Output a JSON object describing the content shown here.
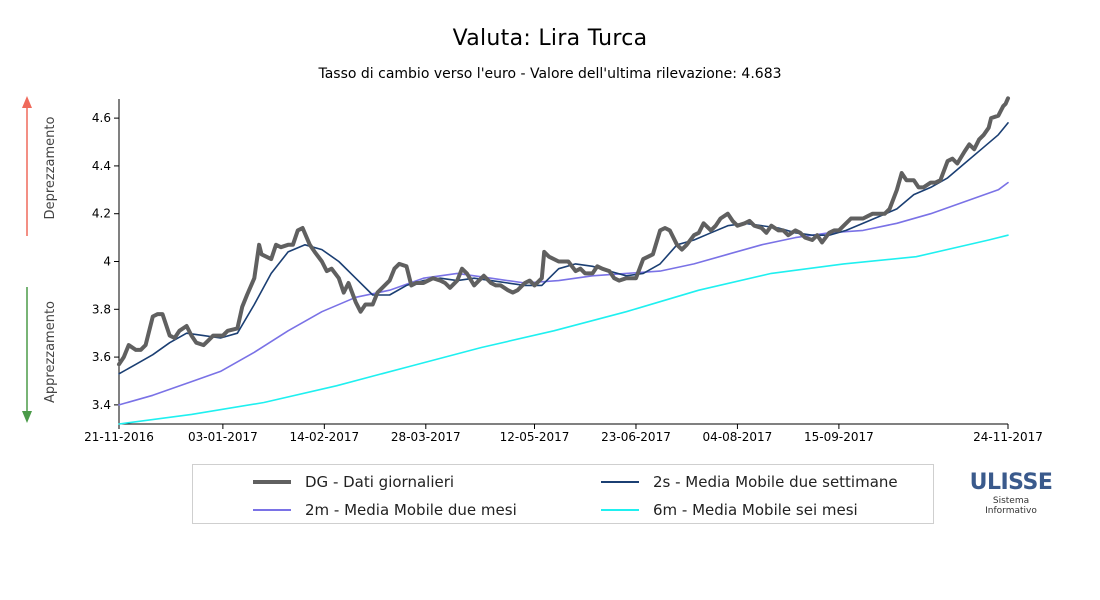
{
  "title": "Valuta: Lira Turca",
  "subtitle": "Tasso di cambio verso l'euro - Valore dell'ultima rilevazione: 4.683",
  "side_labels": {
    "up": "Deprezzamento",
    "down": "Apprezzamento",
    "up_color": "#ef6a5b",
    "down_color": "#4a9a48"
  },
  "logo": {
    "main": "ULISSE",
    "sub1": "Sistema",
    "sub2": "Informativo",
    "color": "#3a5a8c"
  },
  "chart_data": {
    "type": "line",
    "title": "Valuta: Lira Turca",
    "subtitle": "Tasso di cambio verso l'euro - Valore dell'ultima rilevazione: 4.683",
    "x_ticks": [
      "21-11-2016",
      "03-01-2017",
      "14-02-2017",
      "28-03-2017",
      "12-05-2017",
      "23-06-2017",
      "04-08-2017",
      "15-09-2017",
      "24-11-2017"
    ],
    "x_range": [
      "2016-11-21",
      "2017-11-24"
    ],
    "y_ticks": [
      3.4,
      3.6,
      3.8,
      4,
      4.2,
      4.4,
      4.6
    ],
    "y_tick_labels": [
      "3.4",
      "3.6",
      "3.8",
      "4",
      "4.2",
      "4.4",
      "4.6"
    ],
    "ylim": [
      3.32,
      4.68
    ],
    "grid": false,
    "legend_position": "bottom",
    "series": [
      {
        "name": "DG - Dati giornalieri",
        "color": "#606060",
        "points": [
          [
            "2016-11-21",
            3.57
          ],
          [
            "2016-11-23",
            3.6
          ],
          [
            "2016-11-25",
            3.65
          ],
          [
            "2016-11-28",
            3.63
          ],
          [
            "2016-11-30",
            3.63
          ],
          [
            "2016-12-02",
            3.65
          ],
          [
            "2016-12-05",
            3.77
          ],
          [
            "2016-12-07",
            3.78
          ],
          [
            "2016-12-09",
            3.78
          ],
          [
            "2016-12-12",
            3.69
          ],
          [
            "2016-12-14",
            3.68
          ],
          [
            "2016-12-16",
            3.71
          ],
          [
            "2016-12-19",
            3.73
          ],
          [
            "2016-12-21",
            3.69
          ],
          [
            "2016-12-23",
            3.66
          ],
          [
            "2016-12-26",
            3.65
          ],
          [
            "2016-12-28",
            3.67
          ],
          [
            "2016-12-30",
            3.69
          ],
          [
            "2017-01-03",
            3.69
          ],
          [
            "2017-01-05",
            3.71
          ],
          [
            "2017-01-09",
            3.72
          ],
          [
            "2017-01-11",
            3.81
          ],
          [
            "2017-01-13",
            3.86
          ],
          [
            "2017-01-16",
            3.93
          ],
          [
            "2017-01-18",
            4.07
          ],
          [
            "2017-01-19",
            4.03
          ],
          [
            "2017-01-23",
            4.01
          ],
          [
            "2017-01-25",
            4.07
          ],
          [
            "2017-01-27",
            4.06
          ],
          [
            "2017-01-30",
            4.07
          ],
          [
            "2017-02-01",
            4.07
          ],
          [
            "2017-02-03",
            4.13
          ],
          [
            "2017-02-05",
            4.14
          ],
          [
            "2017-02-08",
            4.07
          ],
          [
            "2017-02-10",
            4.04
          ],
          [
            "2017-02-13",
            4.0
          ],
          [
            "2017-02-15",
            3.96
          ],
          [
            "2017-02-17",
            3.97
          ],
          [
            "2017-02-20",
            3.93
          ],
          [
            "2017-02-22",
            3.87
          ],
          [
            "2017-02-24",
            3.91
          ],
          [
            "2017-02-27",
            3.83
          ],
          [
            "2017-03-01",
            3.79
          ],
          [
            "2017-03-03",
            3.82
          ],
          [
            "2017-03-06",
            3.82
          ],
          [
            "2017-03-08",
            3.87
          ],
          [
            "2017-03-10",
            3.89
          ],
          [
            "2017-03-13",
            3.92
          ],
          [
            "2017-03-15",
            3.97
          ],
          [
            "2017-03-17",
            3.99
          ],
          [
            "2017-03-20",
            3.98
          ],
          [
            "2017-03-22",
            3.9
          ],
          [
            "2017-03-24",
            3.91
          ],
          [
            "2017-03-27",
            3.91
          ],
          [
            "2017-03-29",
            3.92
          ],
          [
            "2017-03-31",
            3.93
          ],
          [
            "2017-04-03",
            3.92
          ],
          [
            "2017-04-05",
            3.91
          ],
          [
            "2017-04-07",
            3.89
          ],
          [
            "2017-04-10",
            3.92
          ],
          [
            "2017-04-12",
            3.97
          ],
          [
            "2017-04-14",
            3.95
          ],
          [
            "2017-04-17",
            3.9
          ],
          [
            "2017-04-19",
            3.92
          ],
          [
            "2017-04-21",
            3.94
          ],
          [
            "2017-04-24",
            3.91
          ],
          [
            "2017-04-26",
            3.9
          ],
          [
            "2017-04-28",
            3.9
          ],
          [
            "2017-05-01",
            3.88
          ],
          [
            "2017-05-03",
            3.87
          ],
          [
            "2017-05-05",
            3.88
          ],
          [
            "2017-05-08",
            3.91
          ],
          [
            "2017-05-10",
            3.92
          ],
          [
            "2017-05-12",
            3.9
          ],
          [
            "2017-05-15",
            3.93
          ],
          [
            "2017-05-16",
            4.04
          ],
          [
            "2017-05-18",
            4.02
          ],
          [
            "2017-05-22",
            4.0
          ],
          [
            "2017-05-24",
            4.0
          ],
          [
            "2017-05-26",
            4.0
          ],
          [
            "2017-05-29",
            3.96
          ],
          [
            "2017-05-31",
            3.97
          ],
          [
            "2017-06-02",
            3.95
          ],
          [
            "2017-06-05",
            3.95
          ],
          [
            "2017-06-07",
            3.98
          ],
          [
            "2017-06-09",
            3.97
          ],
          [
            "2017-06-12",
            3.96
          ],
          [
            "2017-06-14",
            3.93
          ],
          [
            "2017-06-16",
            3.92
          ],
          [
            "2017-06-19",
            3.93
          ],
          [
            "2017-06-21",
            3.93
          ],
          [
            "2017-06-23",
            3.93
          ],
          [
            "2017-06-26",
            4.01
          ],
          [
            "2017-06-28",
            4.02
          ],
          [
            "2017-06-30",
            4.03
          ],
          [
            "2017-07-03",
            4.13
          ],
          [
            "2017-07-05",
            4.14
          ],
          [
            "2017-07-07",
            4.13
          ],
          [
            "2017-07-10",
            4.07
          ],
          [
            "2017-07-12",
            4.05
          ],
          [
            "2017-07-14",
            4.07
          ],
          [
            "2017-07-17",
            4.11
          ],
          [
            "2017-07-19",
            4.12
          ],
          [
            "2017-07-21",
            4.16
          ],
          [
            "2017-07-24",
            4.13
          ],
          [
            "2017-07-26",
            4.15
          ],
          [
            "2017-07-28",
            4.18
          ],
          [
            "2017-07-31",
            4.2
          ],
          [
            "2017-08-02",
            4.17
          ],
          [
            "2017-08-04",
            4.15
          ],
          [
            "2017-08-07",
            4.16
          ],
          [
            "2017-08-09",
            4.17
          ],
          [
            "2017-08-11",
            4.15
          ],
          [
            "2017-08-14",
            4.14
          ],
          [
            "2017-08-16",
            4.12
          ],
          [
            "2017-08-18",
            4.15
          ],
          [
            "2017-08-21",
            4.13
          ],
          [
            "2017-08-23",
            4.13
          ],
          [
            "2017-08-25",
            4.11
          ],
          [
            "2017-08-28",
            4.13
          ],
          [
            "2017-08-30",
            4.12
          ],
          [
            "2017-09-01",
            4.1
          ],
          [
            "2017-09-04",
            4.09
          ],
          [
            "2017-09-06",
            4.11
          ],
          [
            "2017-09-08",
            4.08
          ],
          [
            "2017-09-11",
            4.12
          ],
          [
            "2017-09-13",
            4.13
          ],
          [
            "2017-09-15",
            4.13
          ],
          [
            "2017-09-18",
            4.16
          ],
          [
            "2017-09-20",
            4.18
          ],
          [
            "2017-09-22",
            4.18
          ],
          [
            "2017-09-25",
            4.18
          ],
          [
            "2017-09-27",
            4.19
          ],
          [
            "2017-09-29",
            4.2
          ],
          [
            "2017-10-02",
            4.2
          ],
          [
            "2017-10-04",
            4.2
          ],
          [
            "2017-10-06",
            4.22
          ],
          [
            "2017-10-09",
            4.3
          ],
          [
            "2017-10-11",
            4.37
          ],
          [
            "2017-10-13",
            4.34
          ],
          [
            "2017-10-16",
            4.34
          ],
          [
            "2017-10-18",
            4.31
          ],
          [
            "2017-10-20",
            4.31
          ],
          [
            "2017-10-23",
            4.33
          ],
          [
            "2017-10-25",
            4.33
          ],
          [
            "2017-10-27",
            4.34
          ],
          [
            "2017-10-30",
            4.42
          ],
          [
            "2017-11-01",
            4.43
          ],
          [
            "2017-11-03",
            4.41
          ],
          [
            "2017-11-06",
            4.46
          ],
          [
            "2017-11-08",
            4.49
          ],
          [
            "2017-11-10",
            4.47
          ],
          [
            "2017-11-12",
            4.51
          ],
          [
            "2017-11-14",
            4.53
          ],
          [
            "2017-11-16",
            4.56
          ],
          [
            "2017-11-17",
            4.6
          ],
          [
            "2017-11-20",
            4.61
          ],
          [
            "2017-11-22",
            4.65
          ],
          [
            "2017-11-23",
            4.66
          ],
          [
            "2017-11-24",
            4.683
          ]
        ]
      },
      {
        "name": "2s - Media Mobile due settimane",
        "color": "#1b3f73",
        "points": [
          [
            "2016-11-21",
            3.53
          ],
          [
            "2016-11-28",
            3.57
          ],
          [
            "2016-12-05",
            3.61
          ],
          [
            "2016-12-12",
            3.66
          ],
          [
            "2016-12-19",
            3.7
          ],
          [
            "2016-12-26",
            3.69
          ],
          [
            "2017-01-02",
            3.68
          ],
          [
            "2017-01-09",
            3.7
          ],
          [
            "2017-01-16",
            3.82
          ],
          [
            "2017-01-23",
            3.95
          ],
          [
            "2017-01-30",
            4.04
          ],
          [
            "2017-02-06",
            4.07
          ],
          [
            "2017-02-13",
            4.05
          ],
          [
            "2017-02-20",
            4.0
          ],
          [
            "2017-02-27",
            3.93
          ],
          [
            "2017-03-06",
            3.86
          ],
          [
            "2017-03-13",
            3.86
          ],
          [
            "2017-03-20",
            3.9
          ],
          [
            "2017-03-27",
            3.92
          ],
          [
            "2017-04-03",
            3.93
          ],
          [
            "2017-04-10",
            3.92
          ],
          [
            "2017-04-17",
            3.93
          ],
          [
            "2017-04-24",
            3.92
          ],
          [
            "2017-05-01",
            3.91
          ],
          [
            "2017-05-08",
            3.9
          ],
          [
            "2017-05-15",
            3.9
          ],
          [
            "2017-05-22",
            3.97
          ],
          [
            "2017-05-29",
            3.99
          ],
          [
            "2017-06-05",
            3.98
          ],
          [
            "2017-06-12",
            3.96
          ],
          [
            "2017-06-19",
            3.94
          ],
          [
            "2017-06-26",
            3.95
          ],
          [
            "2017-07-03",
            3.99
          ],
          [
            "2017-07-10",
            4.07
          ],
          [
            "2017-07-17",
            4.09
          ],
          [
            "2017-07-24",
            4.12
          ],
          [
            "2017-07-31",
            4.15
          ],
          [
            "2017-08-07",
            4.16
          ],
          [
            "2017-08-14",
            4.15
          ],
          [
            "2017-08-21",
            4.14
          ],
          [
            "2017-08-28",
            4.12
          ],
          [
            "2017-09-04",
            4.11
          ],
          [
            "2017-09-11",
            4.11
          ],
          [
            "2017-09-18",
            4.13
          ],
          [
            "2017-09-25",
            4.16
          ],
          [
            "2017-10-02",
            4.19
          ],
          [
            "2017-10-09",
            4.22
          ],
          [
            "2017-10-16",
            4.28
          ],
          [
            "2017-10-23",
            4.31
          ],
          [
            "2017-10-30",
            4.35
          ],
          [
            "2017-11-06",
            4.41
          ],
          [
            "2017-11-13",
            4.47
          ],
          [
            "2017-11-20",
            4.53
          ],
          [
            "2017-11-24",
            4.58
          ]
        ]
      },
      {
        "name": "2m - Media Mobile due mesi",
        "color": "#7a72e6",
        "points": [
          [
            "2016-11-21",
            3.4
          ],
          [
            "2016-12-05",
            3.44
          ],
          [
            "2016-12-19",
            3.49
          ],
          [
            "2017-01-02",
            3.54
          ],
          [
            "2017-01-16",
            3.62
          ],
          [
            "2017-01-30",
            3.71
          ],
          [
            "2017-02-13",
            3.79
          ],
          [
            "2017-02-27",
            3.85
          ],
          [
            "2017-03-13",
            3.88
          ],
          [
            "2017-03-27",
            3.93
          ],
          [
            "2017-04-10",
            3.95
          ],
          [
            "2017-04-24",
            3.93
          ],
          [
            "2017-05-08",
            3.91
          ],
          [
            "2017-05-22",
            3.92
          ],
          [
            "2017-06-05",
            3.94
          ],
          [
            "2017-06-19",
            3.95
          ],
          [
            "2017-07-03",
            3.96
          ],
          [
            "2017-07-17",
            3.99
          ],
          [
            "2017-07-31",
            4.03
          ],
          [
            "2017-08-14",
            4.07
          ],
          [
            "2017-08-28",
            4.1
          ],
          [
            "2017-09-11",
            4.12
          ],
          [
            "2017-09-25",
            4.13
          ],
          [
            "2017-10-09",
            4.16
          ],
          [
            "2017-10-23",
            4.2
          ],
          [
            "2017-11-06",
            4.25
          ],
          [
            "2017-11-20",
            4.3
          ],
          [
            "2017-11-24",
            4.33
          ]
        ]
      },
      {
        "name": "6m - Media Mobile sei mesi",
        "color": "#1ff0f0",
        "points": [
          [
            "2016-11-21",
            3.32
          ],
          [
            "2016-12-21",
            3.36
          ],
          [
            "2017-01-20",
            3.41
          ],
          [
            "2017-02-19",
            3.48
          ],
          [
            "2017-03-21",
            3.56
          ],
          [
            "2017-04-20",
            3.64
          ],
          [
            "2017-05-20",
            3.71
          ],
          [
            "2017-06-19",
            3.79
          ],
          [
            "2017-07-19",
            3.88
          ],
          [
            "2017-08-18",
            3.95
          ],
          [
            "2017-09-17",
            3.99
          ],
          [
            "2017-10-17",
            4.02
          ],
          [
            "2017-11-16",
            4.09
          ],
          [
            "2017-11-24",
            4.11
          ]
        ]
      }
    ]
  },
  "legend": [
    {
      "label": "DG - Dati giornalieri",
      "color": "#606060",
      "thick": true
    },
    {
      "label": "2s - Media Mobile due settimane",
      "color": "#1b3f73",
      "thick": false
    },
    {
      "label": "2m - Media Mobile due mesi",
      "color": "#7a72e6",
      "thick": false
    },
    {
      "label": "6m - Media Mobile sei mesi",
      "color": "#1ff0f0",
      "thick": false
    }
  ]
}
